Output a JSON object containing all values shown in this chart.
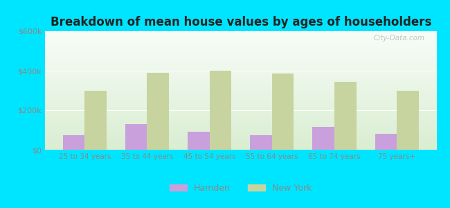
{
  "title": "Breakdown of mean house values by ages of householders",
  "categories": [
    "25 to 34 years",
    "35 to 44 years",
    "45 to 54 years",
    "55 to 64 years",
    "65 to 74 years",
    "75 years+"
  ],
  "hamden_values": [
    75000,
    130000,
    90000,
    75000,
    115000,
    82000
  ],
  "newyork_values": [
    300000,
    390000,
    400000,
    385000,
    345000,
    300000
  ],
  "hamden_color": "#c9a0dc",
  "newyork_color": "#c8d4a0",
  "background_outer": "#00e5ff",
  "title_fontsize": 12,
  "tick_color": "#888888",
  "ylim": [
    0,
    600000
  ],
  "yticks": [
    0,
    200000,
    400000,
    600000
  ],
  "ytick_labels": [
    "$0",
    "$200k",
    "$400k",
    "$600k"
  ],
  "bar_width": 0.35,
  "legend_labels": [
    "Hamden",
    "New York"
  ],
  "watermark": "City-Data.com"
}
